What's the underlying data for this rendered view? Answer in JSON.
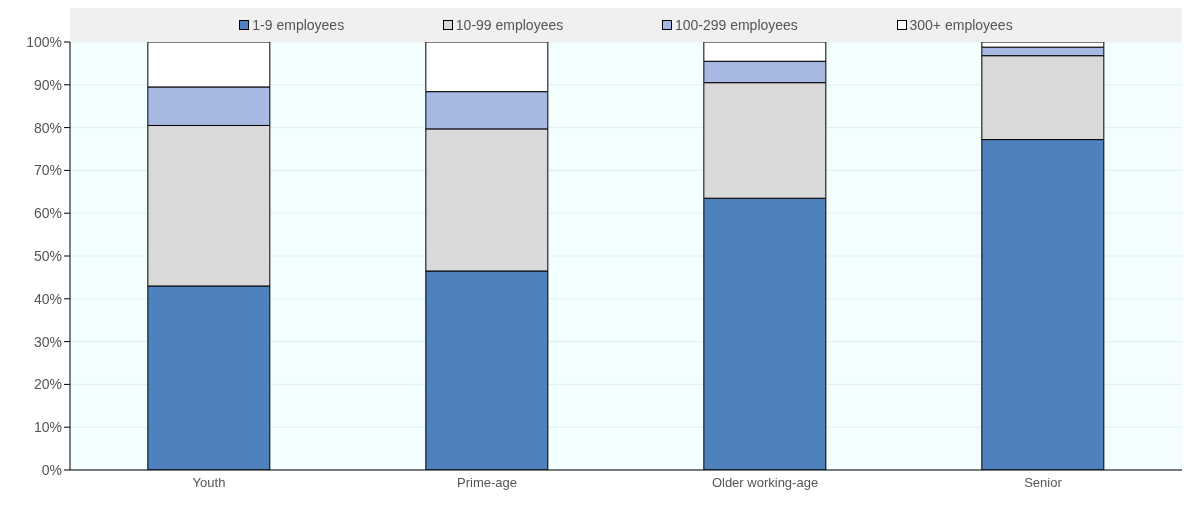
{
  "chart_data": {
    "type": "bar",
    "stacked": true,
    "categories": [
      "Youth",
      "Prime-age",
      "Older working-age",
      "Senior"
    ],
    "series": [
      {
        "name": "1-9 employees",
        "color": "#4f81bd",
        "values": [
          43,
          46.5,
          63.5,
          77.2
        ]
      },
      {
        "name": "10-99 employees",
        "color": "#d9d9d9",
        "values": [
          37.5,
          33.2,
          27,
          19.6
        ]
      },
      {
        "name": "100-299 employees",
        "color": "#a7b8e3",
        "values": [
          9,
          8.7,
          5,
          2
        ]
      },
      {
        "name": "300+ employees",
        "color": "#ffffff",
        "values": [
          10.5,
          11.6,
          4.5,
          1.2
        ]
      }
    ],
    "ylim": [
      0,
      100
    ],
    "yticks": [
      {
        "value": 0,
        "label": "0%"
      },
      {
        "value": 10,
        "label": "10%"
      },
      {
        "value": 20,
        "label": "20%"
      },
      {
        "value": 30,
        "label": "30%"
      },
      {
        "value": 40,
        "label": "40%"
      },
      {
        "value": 50,
        "label": "50%"
      },
      {
        "value": 60,
        "label": "60%"
      },
      {
        "value": 70,
        "label": "70%"
      },
      {
        "value": 80,
        "label": "80%"
      },
      {
        "value": 90,
        "label": "90%"
      },
      {
        "value": 100,
        "label": "100%"
      }
    ],
    "grid": "y",
    "legend": "top"
  }
}
